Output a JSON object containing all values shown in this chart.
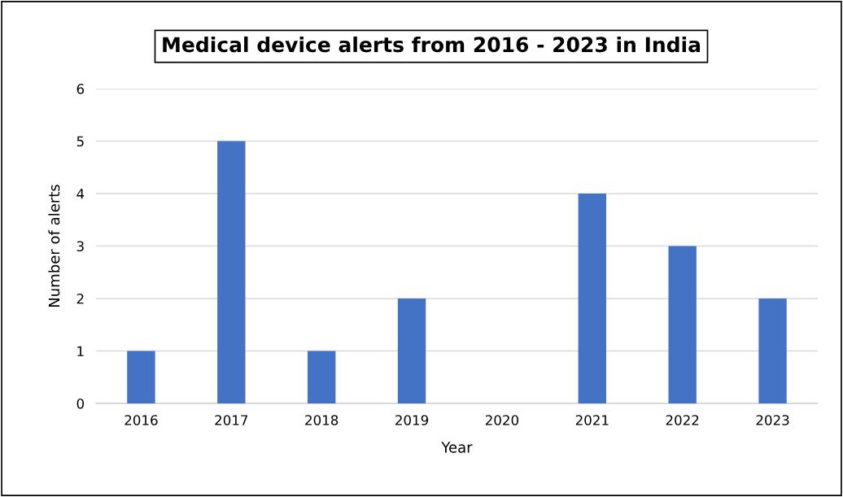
{
  "chart_data": {
    "type": "bar",
    "title": "Medical device alerts from 2016 - 2023 in India",
    "xlabel": "Year",
    "ylabel": "Number of alerts",
    "categories": [
      "2016",
      "2017",
      "2018",
      "2019",
      "2020",
      "2021",
      "2022",
      "2023"
    ],
    "values": [
      1,
      5,
      1,
      2,
      0,
      4,
      3,
      2
    ],
    "color": "#4472c4",
    "ylim": [
      0,
      6
    ],
    "yticks": [
      0,
      1,
      2,
      3,
      4,
      5,
      6
    ],
    "grid": "y"
  }
}
